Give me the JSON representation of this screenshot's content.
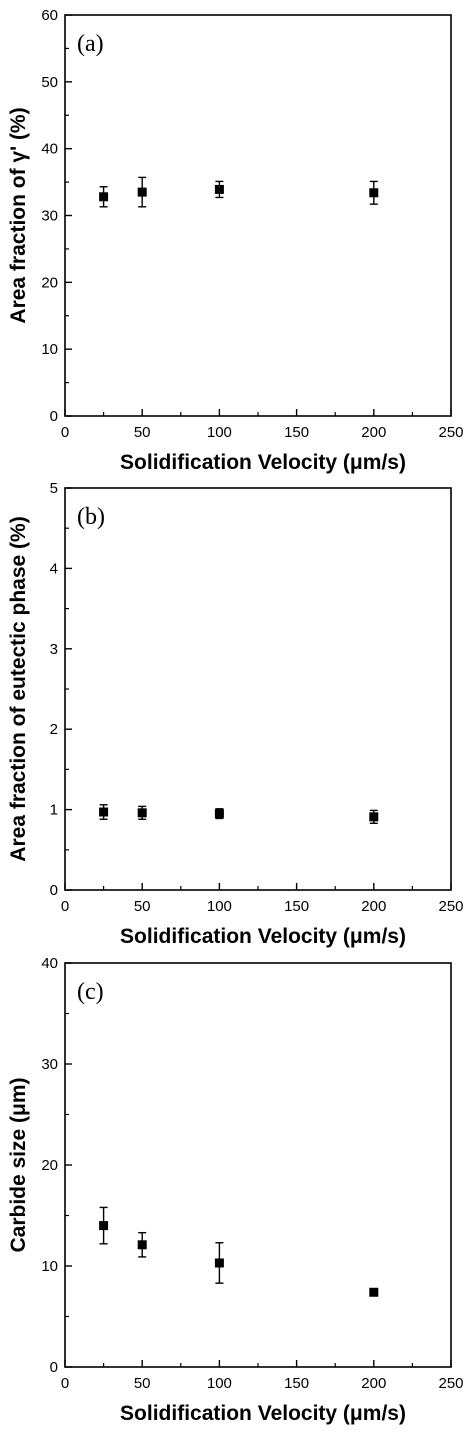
{
  "chart_data": [
    {
      "type": "scatter",
      "panel_label": "(a)",
      "xlabel": "Solidification Velocity (μm/s)",
      "ylabel": "Area fraction of γ' (%)",
      "xlim": [
        0,
        250
      ],
      "ylim": [
        0,
        60
      ],
      "xticks": [
        0,
        50,
        100,
        150,
        200,
        250
      ],
      "yticks": [
        0,
        10,
        20,
        30,
        40,
        50,
        60
      ],
      "x": [
        25,
        50,
        100,
        200
      ],
      "y": [
        32.8,
        33.5,
        33.9,
        33.4
      ],
      "yerr": [
        1.5,
        2.2,
        1.2,
        1.7
      ],
      "grid": false,
      "legend": "none"
    },
    {
      "type": "scatter",
      "panel_label": "(b)",
      "xlabel": "Solidification Velocity (μm/s)",
      "ylabel": "Area fraction of eutectic phase (%)",
      "xlim": [
        0,
        250
      ],
      "ylim": [
        0,
        5
      ],
      "xticks": [
        0,
        50,
        100,
        150,
        200,
        250
      ],
      "yticks": [
        0,
        1,
        2,
        3,
        4,
        5
      ],
      "x": [
        25,
        50,
        100,
        200
      ],
      "y": [
        0.97,
        0.96,
        0.95,
        0.91
      ],
      "yerr": [
        0.09,
        0.08,
        0.06,
        0.08
      ],
      "grid": false,
      "legend": "none"
    },
    {
      "type": "scatter",
      "panel_label": "(c)",
      "xlabel": "Solidification Velocity (μm/s)",
      "ylabel": "Carbide size (μm)",
      "xlim": [
        0,
        250
      ],
      "ylim": [
        0,
        40
      ],
      "xticks": [
        0,
        50,
        100,
        150,
        200,
        250
      ],
      "yticks": [
        0,
        10,
        20,
        30,
        40
      ],
      "x": [
        25,
        50,
        100,
        200
      ],
      "y": [
        14.0,
        12.1,
        10.3,
        7.4
      ],
      "yerr": [
        1.8,
        1.2,
        2.0,
        0.35
      ],
      "grid": false,
      "legend": "none"
    }
  ]
}
